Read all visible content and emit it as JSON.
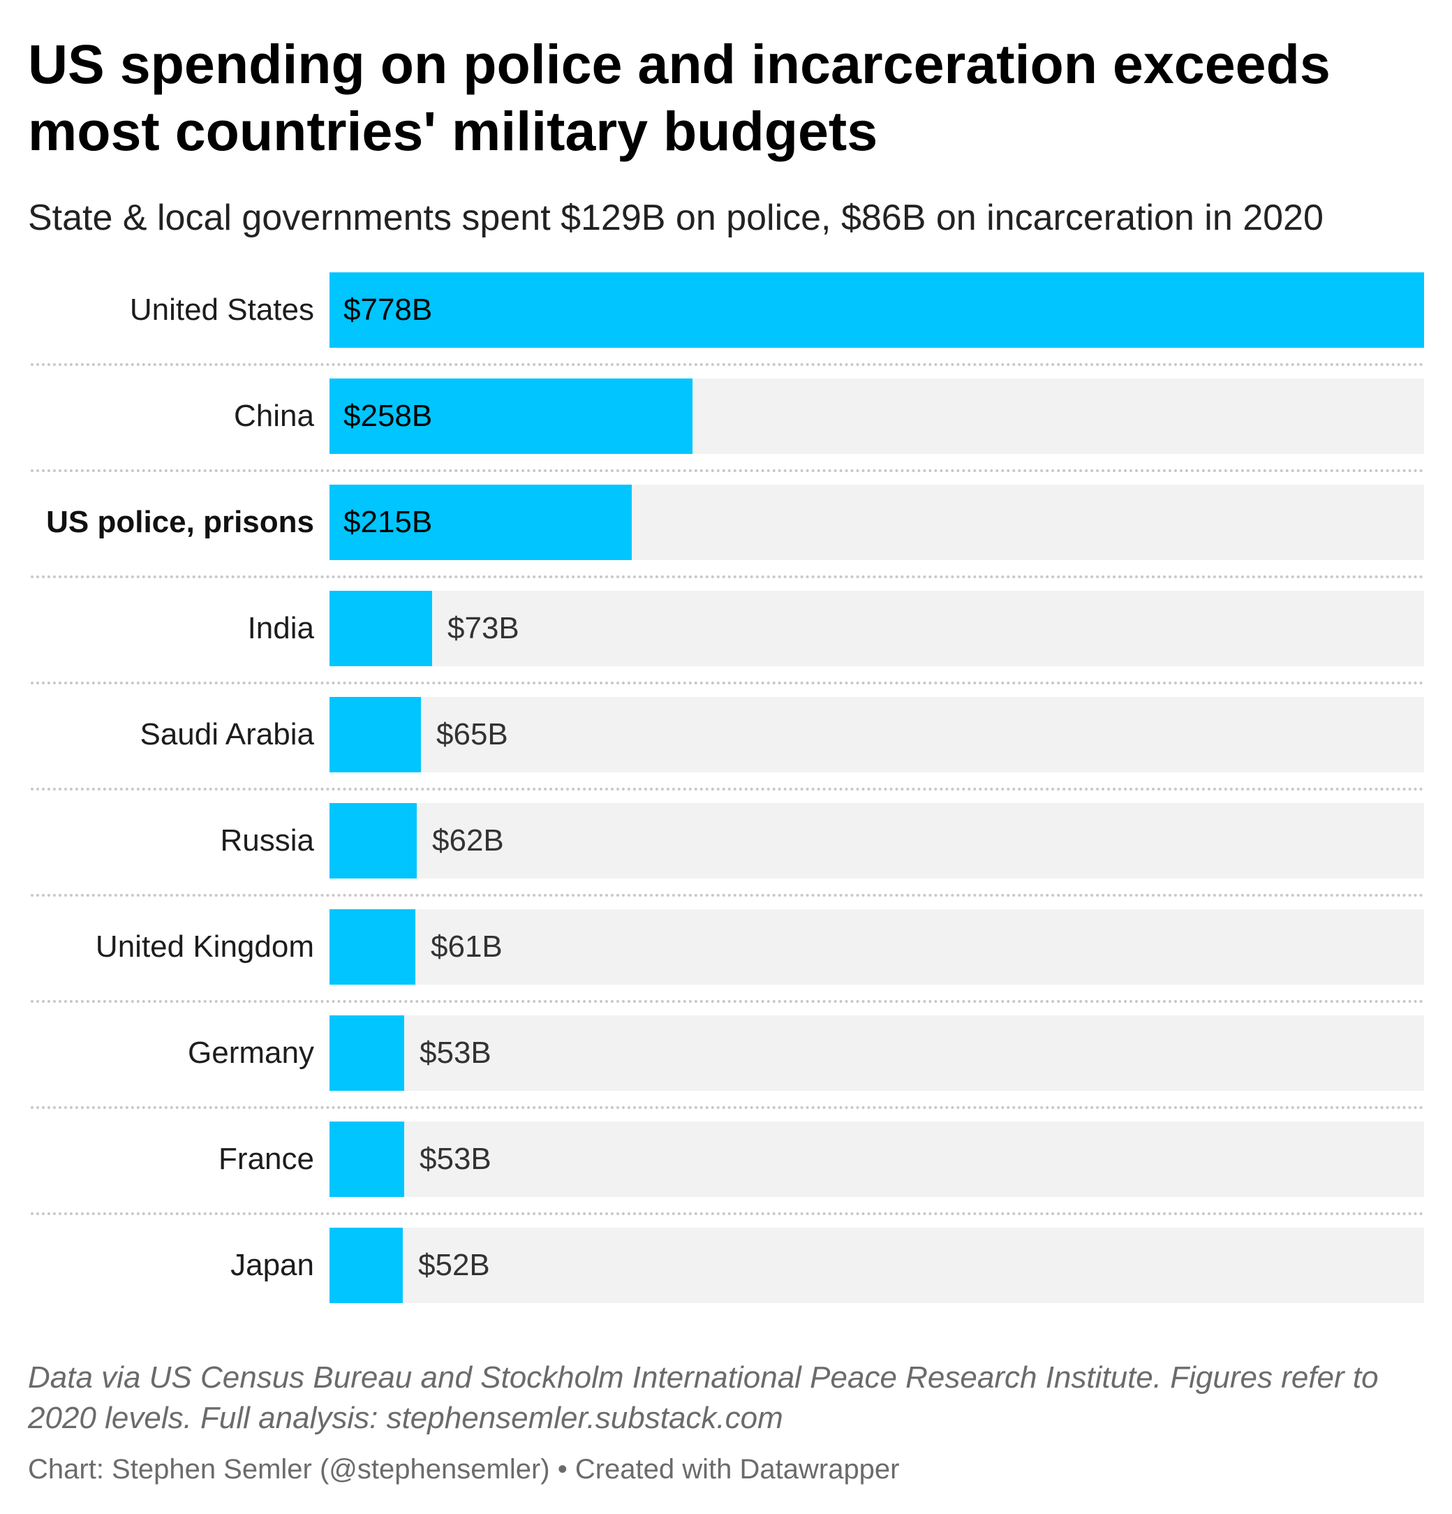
{
  "title": "US spending on police and incarceration exceeds most countries' military budgets",
  "subtitle": "State & local governments spent $129B on police, $86B on incarceration in 2020",
  "notes": "Data via US Census Bureau and Stockholm International Peace Research Institute. Figures refer to 2020 levels. Full analysis: stephensemler.substack.com",
  "byline": "Chart: Stephen Semler (@stephensemler) • Created with Datawrapper",
  "chart_data": {
    "type": "bar",
    "orientation": "horizontal",
    "categories": [
      "United States",
      "China",
      "US police, prisons",
      "India",
      "Saudi Arabia",
      "Russia",
      "United Kingdom",
      "Germany",
      "France",
      "Japan"
    ],
    "values": [
      778,
      258,
      215,
      73,
      65,
      62,
      61,
      53,
      53,
      52
    ],
    "value_labels": [
      "$778B",
      "$258B",
      "$215B",
      "$73B",
      "$65B",
      "$62B",
      "$61B",
      "$53B",
      "$53B",
      "$52B"
    ],
    "highlighted_categories": [
      "US police, prisons"
    ],
    "xlim": [
      0,
      778
    ],
    "bar_color": "#00c5ff",
    "track_color": "#f2f2f2",
    "grid": false,
    "legend": "none"
  }
}
